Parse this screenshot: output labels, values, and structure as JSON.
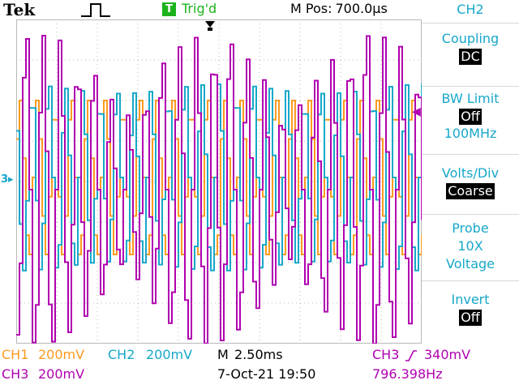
{
  "header": {
    "brand": "Tek",
    "acquire_icon": "single-pulse-icon",
    "trigger_badge": "T",
    "trigger_status": "Trig'd",
    "mpos_label": "M Pos:",
    "mpos_value": "700.0µs"
  },
  "screen": {
    "grid_divisions": [
      10,
      8
    ],
    "markers": {
      "ch3_marker": "3",
      "ch2_marker": "◀"
    }
  },
  "side_menu": {
    "title": "CH2",
    "items": [
      {
        "label": "Coupling",
        "value": "DC"
      },
      {
        "label": "BW Limit",
        "value": "Off",
        "sub": "100MHz"
      },
      {
        "label": "Volts/Div",
        "value": "Coarse"
      },
      {
        "label": "Probe",
        "sub": "10X",
        "sub2": "Voltage"
      },
      {
        "label": "Invert",
        "value": "Off"
      }
    ]
  },
  "status": {
    "ch1_label": "CH1",
    "ch1_scale": "200mV",
    "ch2_label": "CH2",
    "ch2_scale": "200mV",
    "ch3_label": "CH3",
    "ch3_scale": "200mV",
    "timebase_label": "M",
    "timebase": "2.50ms",
    "date": "7-Oct-21 19:50",
    "trig_source": "CH3",
    "trig_level": "340mV",
    "frequency": "796.398Hz"
  },
  "colors": {
    "ch1": "#ff9a1e",
    "ch2": "#16a8c9",
    "ch3": "#b000b0",
    "grid": "#b8b8b8",
    "trigger": "#1cb31c"
  }
}
